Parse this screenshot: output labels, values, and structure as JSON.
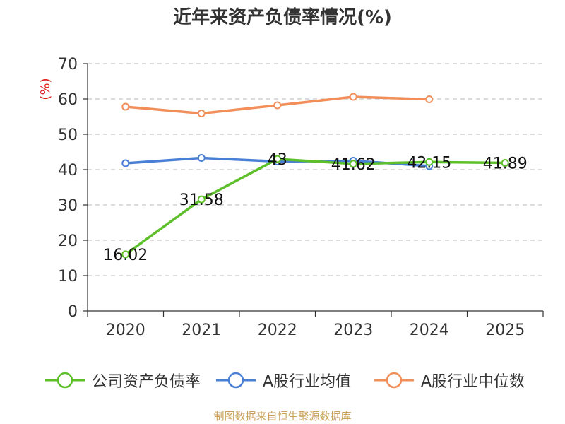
{
  "title": "近年来资产负债率情况(%)",
  "source": "制图数据来自恒生聚源数据库",
  "chart_data": {
    "type": "line",
    "title": "近年来资产负债率情况(%)",
    "ylabel": "(%)",
    "xlabel": "",
    "categories": [
      "2020",
      "2021",
      "2022",
      "2023",
      "2024",
      "2025"
    ],
    "ylim": [
      0,
      70
    ],
    "yticks": [
      0,
      10,
      20,
      30,
      40,
      50,
      60,
      70
    ],
    "grid": true,
    "legend_position": "bottom",
    "series": [
      {
        "name": "公司资产负债率",
        "color": "#5dbf2a",
        "labels": [
          "16.02",
          "31.58",
          "43",
          "41.62",
          "42.15",
          "41.89"
        ],
        "values": [
          16.02,
          31.58,
          43,
          41.62,
          42.15,
          41.89
        ]
      },
      {
        "name": "A股行业均值",
        "color": "#4a7fd6",
        "labels": [],
        "values": [
          41.8,
          43.3,
          42.3,
          42.5,
          41.0,
          null
        ]
      },
      {
        "name": "A股行业中位数",
        "color": "#f28e5a",
        "labels": [],
        "values": [
          57.8,
          55.9,
          58.2,
          60.6,
          59.9,
          null
        ]
      }
    ]
  }
}
